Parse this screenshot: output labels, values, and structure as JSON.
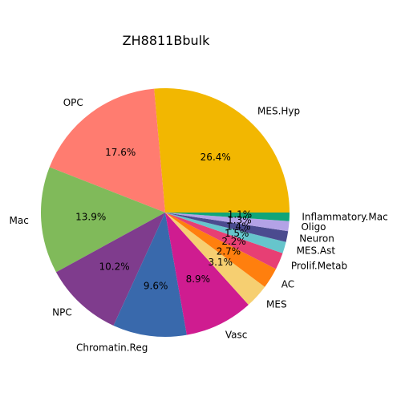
{
  "chart_data": {
    "type": "pie",
    "title": "ZH8811Bbulk",
    "start_angle_deg": 0,
    "direction": "counterclockwise",
    "slices": [
      {
        "label": "MES.Hyp",
        "pct_label": "26.4%",
        "value": 26.4,
        "color": "#F2B701"
      },
      {
        "label": "OPC",
        "pct_label": "17.6%",
        "value": 17.6,
        "color": "#FF7C70"
      },
      {
        "label": "Mac",
        "pct_label": "13.9%",
        "value": 13.9,
        "color": "#80BA5A"
      },
      {
        "label": "NPC",
        "pct_label": "10.2%",
        "value": 10.2,
        "color": "#7F3C8D"
      },
      {
        "label": "Chromatin.Reg",
        "pct_label": "9.6%",
        "value": 9.6,
        "color": "#3969AC"
      },
      {
        "label": "Vasc",
        "pct_label": "8.9%",
        "value": 8.9,
        "color": "#CF1C90"
      },
      {
        "label": "MES",
        "pct_label": "3.1%",
        "value": 3.1,
        "color": "#F6CF71"
      },
      {
        "label": "AC",
        "pct_label": "2.7%",
        "value": 2.7,
        "color": "#FF7F0E"
      },
      {
        "label": "Prolif.Metab",
        "pct_label": "2.2%",
        "value": 2.2,
        "color": "#E73F74"
      },
      {
        "label": "MES.Ast",
        "pct_label": "1.5%",
        "value": 1.5,
        "color": "#66C5CC"
      },
      {
        "label": "Neuron",
        "pct_label": "1.4%",
        "value": 1.4,
        "color": "#4B4B8F"
      },
      {
        "label": "Oligo",
        "pct_label": "1.3%",
        "value": 1.3,
        "color": "#B3A2E6"
      },
      {
        "label": "Inflammatory.Mac",
        "pct_label": "1.1%",
        "value": 1.1,
        "color": "#11A579"
      }
    ]
  }
}
